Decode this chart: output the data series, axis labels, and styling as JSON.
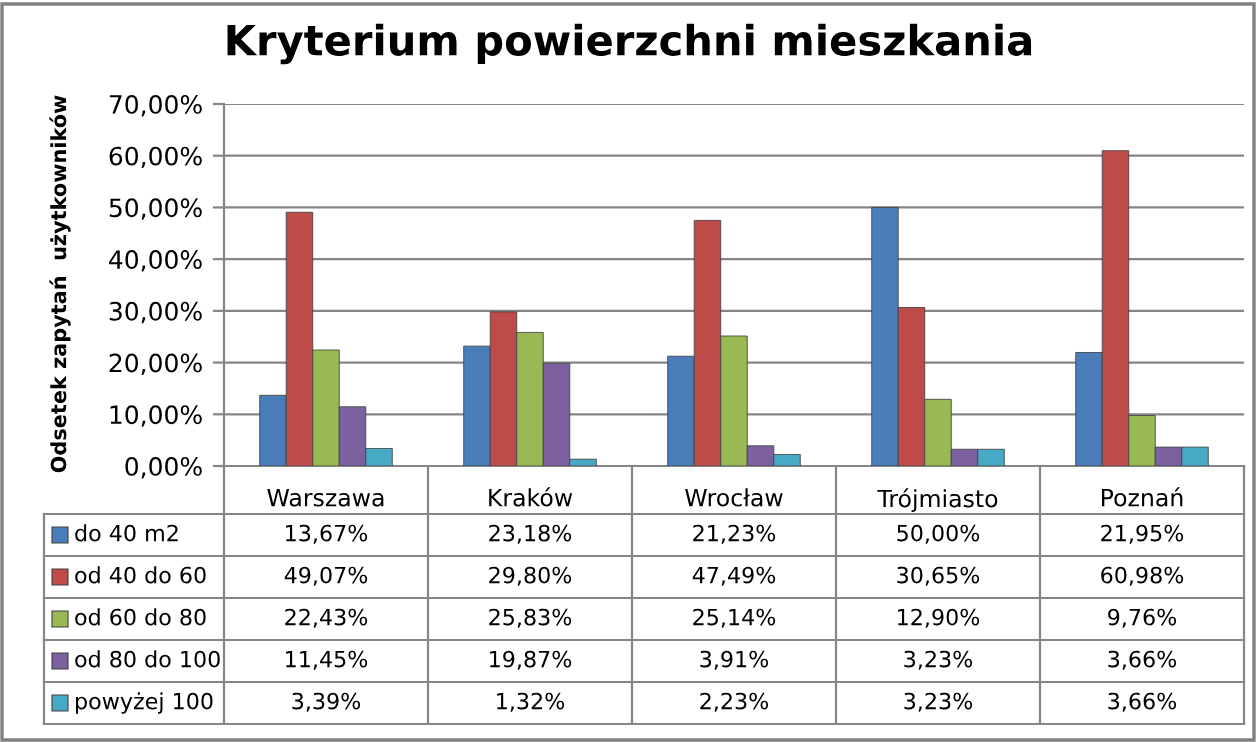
{
  "chart_data": {
    "type": "bar",
    "title": "Kryterium powierzchni mieszkania",
    "ylabel": "Odsetek zapytań  użytkowników",
    "categories": [
      "Warszawa",
      "Kraków",
      "Wrocław",
      "Trójmiasto",
      "Poznań"
    ],
    "series": [
      {
        "name": "do 40 m2",
        "color": "#4a7ebb",
        "values": [
          13.67,
          23.18,
          21.23,
          50.0,
          21.95
        ],
        "value_labels": [
          "13,67%",
          "23,18%",
          "21,23%",
          "50,00%",
          "21,95%"
        ]
      },
      {
        "name": "od 40 do 60",
        "color": "#be4b48",
        "values": [
          49.07,
          29.8,
          47.49,
          30.65,
          60.98
        ],
        "value_labels": [
          "49,07%",
          "29,80%",
          "47,49%",
          "30,65%",
          "60,98%"
        ]
      },
      {
        "name": "od 60 do 80",
        "color": "#98b954",
        "values": [
          22.43,
          25.83,
          25.14,
          12.9,
          9.76
        ],
        "value_labels": [
          "22,43%",
          "25,83%",
          "25,14%",
          "12,90%",
          "9,76%"
        ]
      },
      {
        "name": "od 80 do 100",
        "color": "#7d60a0",
        "values": [
          11.45,
          19.87,
          3.91,
          3.23,
          3.66
        ],
        "value_labels": [
          "11,45%",
          "19,87%",
          "3,91%",
          "3,23%",
          "3,66%"
        ]
      },
      {
        "name": "powyżej 100",
        "color": "#46aac5",
        "values": [
          3.39,
          1.32,
          2.23,
          3.23,
          3.66
        ],
        "value_labels": [
          "3,39%",
          "1,32%",
          "2,23%",
          "3,23%",
          "3,66%"
        ]
      }
    ],
    "ylim": [
      0,
      70
    ],
    "yticks": [
      {
        "value": 0,
        "label": "0,00%"
      },
      {
        "value": 10,
        "label": "10,00%"
      },
      {
        "value": 20,
        "label": "20,00%"
      },
      {
        "value": 30,
        "label": "30,00%"
      },
      {
        "value": 40,
        "label": "40,00%"
      },
      {
        "value": 50,
        "label": "50,00%"
      },
      {
        "value": 60,
        "label": "60,00%"
      },
      {
        "value": 70,
        "label": "70,00%"
      }
    ],
    "grid": "y",
    "legend": "bottom"
  }
}
